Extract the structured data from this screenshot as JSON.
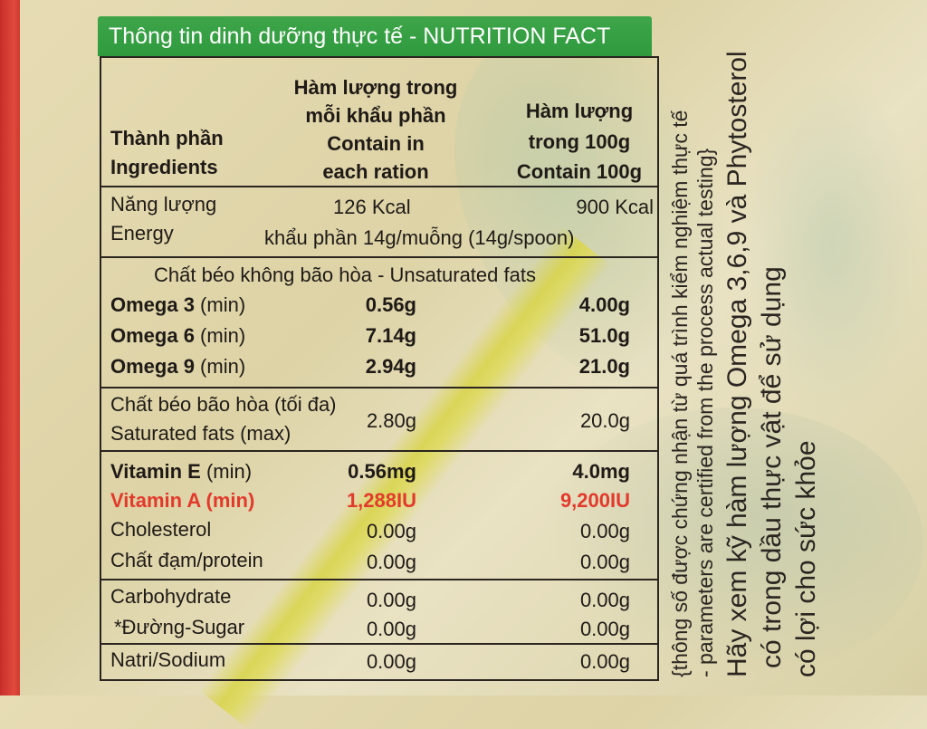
{
  "header": {
    "title": "Thông tin dinh dưỡng thực tế - NUTRITION FACT"
  },
  "columns": {
    "ingredient": [
      "Thành phần",
      "Ingredients"
    ],
    "per_ration": [
      "Hàm lượng trong",
      "mỗi khẩu phần",
      "Contain in",
      "each ration"
    ],
    "per_100g": [
      "Hàm lượng",
      "trong 100g",
      "Contain 100g"
    ]
  },
  "energy": {
    "label": [
      "Năng lượng",
      "Energy"
    ],
    "per_ration": "126 Kcal",
    "per_100g": "900 Kcal",
    "serving_note": "khẩu phần 14g/muỗng (14g/spoon)"
  },
  "unsaturated": {
    "heading": "Chất béo không bão hòa - Unsaturated fats",
    "rows": [
      {
        "label": "Omega 3",
        "qualifier": " (min)",
        "per_ration": "0.56g",
        "per_100g": "4.00g"
      },
      {
        "label": "Omega 6",
        "qualifier": " (min)",
        "per_ration": "7.14g",
        "per_100g": "51.0g"
      },
      {
        "label": "Omega 9",
        "qualifier": " (min)",
        "per_ration": "2.94g",
        "per_100g": "21.0g"
      }
    ]
  },
  "saturated": {
    "label": [
      "Chất béo bão hòa (tối đa)",
      "Saturated fats (max)"
    ],
    "per_ration": "2.80g",
    "per_100g": "20.0g"
  },
  "vitamins": [
    {
      "label": "Vitamin E",
      "qualifier": " (min)",
      "per_ration": "0.56mg",
      "per_100g": "4.0mg",
      "color": "#1f1a16"
    },
    {
      "label": "Vitamin A (min)",
      "qualifier": "",
      "per_ration": "1,288IU",
      "per_100g": "9,200IU",
      "color": "#e23a2c"
    }
  ],
  "others": [
    {
      "label": "Cholesterol",
      "per_ration": "0.00g",
      "per_100g": "0.00g"
    },
    {
      "label": "Chất đạm/protein",
      "per_ration": "0.00g",
      "per_100g": "0.00g"
    },
    {
      "label": "Carbohydrate",
      "per_ration": "0.00g",
      "per_100g": "0.00g"
    },
    {
      "label": "*Đường-Sugar",
      "per_ration": "0.00g",
      "per_100g": "0.00g"
    },
    {
      "label": "Natri/Sodium",
      "per_ration": "0.00g",
      "per_100g": "0.00g"
    }
  ],
  "side_text": {
    "line1": "{thông số được chứng nhận từ quá trình kiểm nghiệm thực tế",
    "line2": "- parameters are certified from the process actual testing}",
    "line3": "Hãy xem kỹ hàm lượng Omega 3,6,9 và Phytosterol",
    "line4": "có trong dầu thực vật để sử dụng",
    "line5": "có lợi cho sức khỏe"
  },
  "colors": {
    "header_bg": "#2e9a3e",
    "accent_red": "#e23a2c",
    "border": "#2a2520"
  }
}
